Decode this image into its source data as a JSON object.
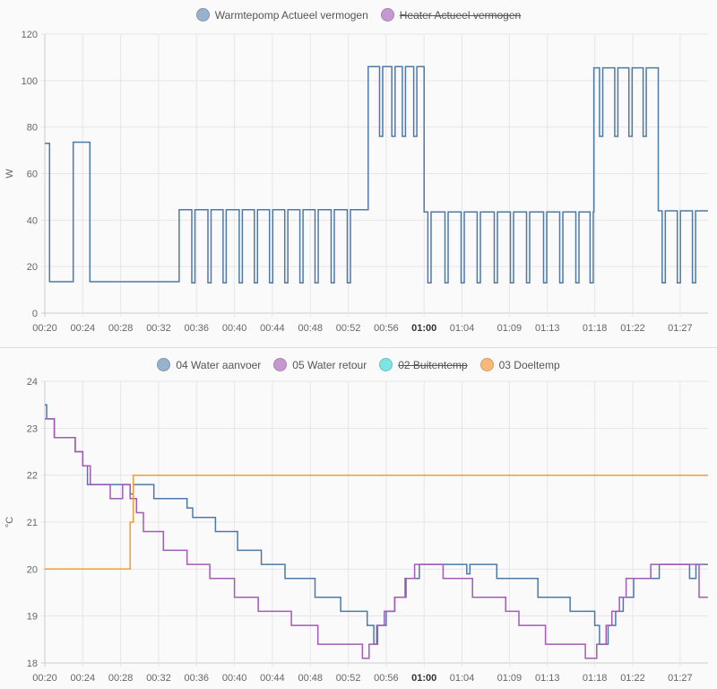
{
  "chart_data": [
    {
      "type": "line",
      "step": true,
      "ylabel": "W",
      "ylim": [
        0,
        120
      ],
      "yticks": [
        "0",
        "20",
        "40",
        "60",
        "80",
        "100",
        "120"
      ],
      "xlim": [
        "00:20:00",
        "01:29:56"
      ],
      "xticks": [
        {
          "label": "00:20",
          "time": "00:20:00"
        },
        {
          "label": "00:24",
          "time": "00:24:00"
        },
        {
          "label": "00:28",
          "time": "00:28:00"
        },
        {
          "label": "00:32",
          "time": "00:32:00"
        },
        {
          "label": "00:36",
          "time": "00:36:00"
        },
        {
          "label": "00:40",
          "time": "00:40:00"
        },
        {
          "label": "00:44",
          "time": "00:44:00"
        },
        {
          "label": "00:48",
          "time": "00:48:00"
        },
        {
          "label": "00:52",
          "time": "00:52:00"
        },
        {
          "label": "00:56",
          "time": "00:56:00"
        },
        {
          "label": "01:00",
          "time": "01:00:00",
          "bold": true
        },
        {
          "label": "01:04",
          "time": "01:04:00"
        },
        {
          "label": "01:09",
          "time": "01:09:00"
        },
        {
          "label": "01:13",
          "time": "01:13:00"
        },
        {
          "label": "01:18",
          "time": "01:18:00"
        },
        {
          "label": "01:22",
          "time": "01:22:00"
        },
        {
          "label": "01:27",
          "time": "01:27:00"
        }
      ],
      "grid": true,
      "legend_position": "top",
      "series": [
        {
          "name": "Warmtepomp Actueel vermogen",
          "color": "#4e79a7",
          "legend_color": "#98b1cc",
          "hidden": false,
          "segments": [
            {
              "from": "00:20:00",
              "to": "00:20:30",
              "level": 73,
              "dips": [],
              "dip_value": null
            },
            {
              "from": "00:20:30",
              "to": "00:23:00",
              "level": 13.5,
              "dips": [],
              "dip_value": null
            },
            {
              "from": "00:23:00",
              "to": "00:24:45",
              "level": 73.5,
              "dips": [],
              "dip_value": null
            },
            {
              "from": "00:24:45",
              "to": "00:34:10",
              "level": 13.5,
              "dips": [],
              "dip_value": null
            },
            {
              "from": "00:34:10",
              "to": "00:54:06",
              "level": 44.5,
              "dip_value": 13,
              "dips": [
                "00:35:30",
                "00:37:12",
                "00:38:48",
                "00:40:30",
                "00:42:06",
                "00:43:42",
                "00:45:18",
                "00:46:54",
                "00:48:30",
                "00:50:12",
                "00:51:54"
              ]
            },
            {
              "from": "00:54:06",
              "to": "01:00:00",
              "level": 106,
              "dip_value": 76,
              "dips": [
                "00:55:18",
                "00:56:36",
                "00:57:42",
                "00:58:54"
              ]
            },
            {
              "from": "01:00:00",
              "to": "01:17:54",
              "level": 43.5,
              "dip_value": 13,
              "dips": [
                "01:00:24",
                "01:02:12",
                "01:03:54",
                "01:05:36",
                "01:07:24",
                "01:09:06",
                "01:10:48",
                "01:12:36",
                "01:14:18",
                "01:16:00",
                "01:17:30"
              ]
            },
            {
              "from": "01:17:54",
              "to": "01:24:42",
              "level": 105.5,
              "dip_value": 76,
              "dips": [
                "01:18:30",
                "01:20:06",
                "01:21:36",
                "01:23:06"
              ]
            },
            {
              "from": "01:24:42",
              "to": "01:29:56",
              "level": 44,
              "dip_value": 13,
              "dips": [
                "01:25:06",
                "01:26:42",
                "01:28:18"
              ]
            }
          ]
        },
        {
          "name": "Heater Actueel vermogen",
          "color": "#a35bb5",
          "legend_color": "#c698d0",
          "hidden": true,
          "segments": []
        }
      ]
    },
    {
      "type": "line",
      "step": true,
      "ylabel": "°C",
      "ylim": [
        18,
        24
      ],
      "yticks": [
        "18",
        "19",
        "20",
        "21",
        "22",
        "23",
        "24"
      ],
      "xlim": [
        "00:20:00",
        "01:29:56"
      ],
      "grid": true,
      "legend_position": "top",
      "series": [
        {
          "name": "04 Water aanvoer",
          "color": "#4e79a7",
          "legend_color": "#98b1cc",
          "hidden": false,
          "points": [
            [
              "00:20:00",
              23.5
            ],
            [
              "00:20:12",
              23.2
            ],
            [
              "00:21:00",
              22.8
            ],
            [
              "00:23:12",
              22.5
            ],
            [
              "00:24:00",
              22.2
            ],
            [
              "00:24:30",
              21.8
            ],
            [
              "00:29:00",
              21.6
            ],
            [
              "00:29:20",
              21.8
            ],
            [
              "00:31:30",
              21.5
            ],
            [
              "00:35:00",
              21.3
            ],
            [
              "00:35:36",
              21.1
            ],
            [
              "00:38:00",
              20.8
            ],
            [
              "00:40:20",
              20.4
            ],
            [
              "00:42:50",
              20.1
            ],
            [
              "00:45:20",
              19.8
            ],
            [
              "00:48:30",
              19.4
            ],
            [
              "00:51:12",
              19.1
            ],
            [
              "00:54:00",
              18.8
            ],
            [
              "00:54:42",
              18.4
            ],
            [
              "00:55:00",
              18.8
            ],
            [
              "00:56:00",
              19.1
            ],
            [
              "00:56:54",
              19.4
            ],
            [
              "00:58:00",
              19.8
            ],
            [
              "00:59:30",
              20.1
            ],
            [
              "01:04:30",
              19.9
            ],
            [
              "01:04:50",
              20.1
            ],
            [
              "01:07:40",
              19.8
            ],
            [
              "01:12:00",
              19.4
            ],
            [
              "01:15:24",
              19.1
            ],
            [
              "01:18:00",
              18.8
            ],
            [
              "01:18:30",
              18.4
            ],
            [
              "01:19:24",
              18.8
            ],
            [
              "01:20:12",
              19.1
            ],
            [
              "01:21:00",
              19.4
            ],
            [
              "01:22:06",
              19.8
            ],
            [
              "01:24:48",
              20.1
            ],
            [
              "01:28:00",
              19.8
            ],
            [
              "01:28:40",
              20.1
            ],
            [
              "01:29:56",
              20.1
            ]
          ]
        },
        {
          "name": "05 Water retour",
          "color": "#a35bb5",
          "legend_color": "#c698d0",
          "hidden": false,
          "points": [
            [
              "00:20:00",
              23.2
            ],
            [
              "00:21:00",
              22.8
            ],
            [
              "00:23:12",
              22.5
            ],
            [
              "00:24:00",
              22.2
            ],
            [
              "00:24:48",
              21.8
            ],
            [
              "00:26:54",
              21.5
            ],
            [
              "00:28:12",
              21.8
            ],
            [
              "00:29:00",
              21.5
            ],
            [
              "00:29:40",
              21.2
            ],
            [
              "00:30:24",
              20.8
            ],
            [
              "00:32:30",
              20.4
            ],
            [
              "00:35:00",
              20.1
            ],
            [
              "00:37:24",
              19.8
            ],
            [
              "00:40:00",
              19.4
            ],
            [
              "00:42:30",
              19.1
            ],
            [
              "00:46:00",
              18.8
            ],
            [
              "00:48:48",
              18.4
            ],
            [
              "00:53:30",
              18.1
            ],
            [
              "00:54:12",
              18.4
            ],
            [
              "00:55:06",
              18.8
            ],
            [
              "00:55:48",
              19.1
            ],
            [
              "00:56:54",
              19.4
            ],
            [
              "00:58:06",
              19.8
            ],
            [
              "00:59:00",
              20.1
            ],
            [
              "01:02:00",
              19.8
            ],
            [
              "01:05:06",
              19.4
            ],
            [
              "01:08:36",
              19.1
            ],
            [
              "01:10:00",
              18.8
            ],
            [
              "01:12:48",
              18.4
            ],
            [
              "01:17:00",
              18.1
            ],
            [
              "01:18:12",
              18.4
            ],
            [
              "01:19:12",
              18.8
            ],
            [
              "01:19:48",
              19.1
            ],
            [
              "01:20:36",
              19.4
            ],
            [
              "01:21:18",
              19.8
            ],
            [
              "01:23:54",
              20.1
            ],
            [
              "01:29:00",
              19.4
            ],
            [
              "01:29:56",
              19.4
            ]
          ]
        },
        {
          "name": "02 Buitentemp",
          "color": "#2ec4c4",
          "legend_color": "#7de3e3",
          "hidden": true,
          "points": []
        },
        {
          "name": "03 Doeltemp",
          "color": "#f39c34",
          "legend_color": "#f9b877",
          "hidden": false,
          "points": [
            [
              "00:20:00",
              20
            ],
            [
              "00:29:00",
              21
            ],
            [
              "00:29:20",
              22
            ],
            [
              "01:29:56",
              22
            ]
          ]
        }
      ]
    }
  ]
}
